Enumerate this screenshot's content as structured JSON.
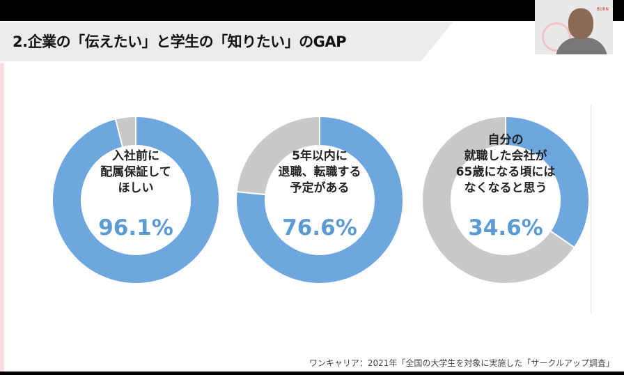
{
  "slide": {
    "title": "2.企業の「伝えたい」と学生の「知りたい」のGAP",
    "source": "ワンキャリア：2021年「全国の大学生を対象に実施した「サークルアップ調査」"
  },
  "webcam": {
    "logo": "BURN"
  },
  "chart_data": [
    {
      "type": "pie",
      "donut": true,
      "label_lines": [
        "入社前に",
        "配属保証して",
        "ほしい"
      ],
      "value_label": "96.1%",
      "values": [
        96.1,
        3.9
      ],
      "colors": [
        "#6ea6de",
        "#c9c9c9"
      ]
    },
    {
      "type": "pie",
      "donut": true,
      "label_lines": [
        "5年以内に",
        "退職、転職する",
        "予定がある"
      ],
      "value_label": "76.6%",
      "values": [
        76.6,
        23.4
      ],
      "colors": [
        "#6ea6de",
        "#c9c9c9"
      ]
    },
    {
      "type": "pie",
      "donut": true,
      "label_lines": [
        "自分の",
        "就職した会社が",
        "65歳になる頃には",
        "なくなると思う"
      ],
      "value_label": "34.6%",
      "values": [
        34.6,
        65.4
      ],
      "colors": [
        "#6ea6de",
        "#c9c9c9"
      ]
    }
  ]
}
